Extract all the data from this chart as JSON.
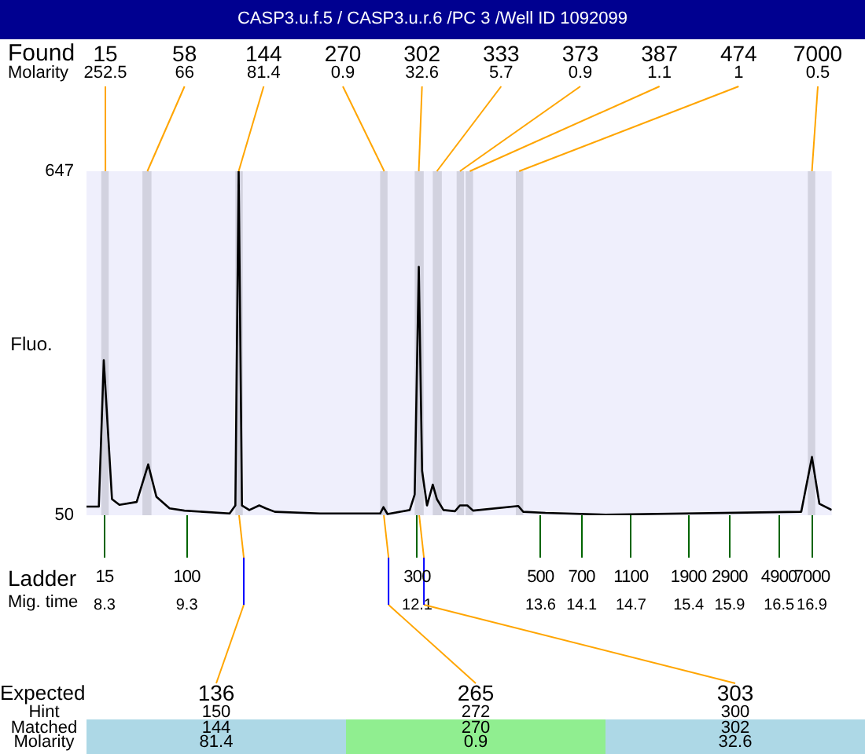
{
  "chart_data": {
    "type": "line",
    "title": "CASP3.u.f.5 / CASP3.u.r.6 /PC 3 /Well ID 1092099",
    "ylabel": "Fluo.",
    "xlim": [
      8.08,
      17.14
    ],
    "xticks": [
      8.3,
      9.3,
      12.1,
      13.6,
      14.1,
      14.7,
      15.4,
      15.9,
      16.5,
      16.9
    ],
    "ylim": [
      50,
      647
    ],
    "yticks": [
      50,
      647
    ],
    "grid": false,
    "legend": false,
    "x": [
      8.08,
      8.23,
      8.29,
      8.39,
      8.48,
      8.69,
      8.83,
      8.93,
      9.09,
      9.27,
      9.82,
      9.89,
      9.93,
      9.97,
      10.06,
      10.18,
      10.26,
      10.37,
      10.92,
      11.65,
      11.69,
      11.74,
      12.01,
      12.07,
      12.12,
      12.16,
      12.22,
      12.29,
      12.34,
      12.42,
      12.56,
      12.62,
      12.71,
      12.78,
      13.33,
      13.39,
      13.66,
      14.39,
      16.77,
      16.9,
      16.99,
      17.14
    ],
    "series": [
      {
        "color": "#000000",
        "values": [
          65,
          65,
          319,
          78,
          68,
          73,
          138,
          82,
          62,
          58,
          53,
          67,
          647,
          67,
          59,
          67,
          62,
          56,
          53,
          53,
          64,
          52,
          59,
          86,
          481,
          127,
          67,
          103,
          78,
          59,
          57,
          67,
          67,
          58,
          66,
          56,
          54,
          51,
          56,
          151,
          70,
          59
        ]
      }
    ],
    "bands": [
      {
        "axis": "x",
        "from": 8.26,
        "to": 8.35,
        "label": "15",
        "color": "#d2d2df"
      },
      {
        "axis": "x",
        "from": 8.76,
        "to": 8.87,
        "label": "58",
        "color": "#d2d2df"
      },
      {
        "axis": "x",
        "from": 9.89,
        "to": 9.98,
        "label": "144",
        "color": "#d2d2df"
      },
      {
        "axis": "x",
        "from": 11.65,
        "to": 11.74,
        "label": "270",
        "color": "#d2d2df"
      },
      {
        "axis": "x",
        "from": 12.07,
        "to": 12.18,
        "label": "302",
        "color": "#d2d2df"
      },
      {
        "axis": "x",
        "from": 12.29,
        "to": 12.4,
        "label": "333",
        "color": "#d2d2df"
      },
      {
        "axis": "x",
        "from": 12.58,
        "to": 12.67,
        "label": "373",
        "color": "#d2d2df"
      },
      {
        "axis": "x",
        "from": 12.69,
        "to": 12.78,
        "label": "387",
        "color": "#d2d2df"
      },
      {
        "axis": "x",
        "from": 13.3,
        "to": 13.39,
        "label": "474",
        "color": "#d2d2df"
      },
      {
        "axis": "x",
        "from": 16.85,
        "to": 16.94,
        "label": "7000",
        "color": "#d2d2df"
      }
    ],
    "annotations": [
      "Found",
      "Molarity",
      "Ladder",
      "Mig. time",
      "Expected",
      "Hint",
      "Matched",
      "Molarity",
      {
        "text": "252.5",
        "x": 8.31,
        "y": 647
      },
      {
        "text": "66",
        "x": 8.82,
        "y": 647
      },
      {
        "text": "81.4",
        "x": 9.93,
        "y": 647
      },
      {
        "text": "0.9",
        "x": 11.7,
        "y": 647
      },
      {
        "text": "32.6",
        "x": 12.12,
        "y": 647
      },
      {
        "text": "5.7",
        "x": 12.34,
        "y": 647
      },
      {
        "text": "0.9",
        "x": 12.62,
        "y": 647
      },
      {
        "text": "1.1",
        "x": 12.74,
        "y": 647
      },
      {
        "text": "1",
        "x": 13.34,
        "y": 647
      },
      {
        "text": "0.5",
        "x": 16.9,
        "y": 647
      },
      "15",
      "100",
      "300",
      "500",
      "700",
      "1100",
      "1900",
      "2900",
      "4900",
      "7000",
      "136",
      "150",
      "144",
      "81.4",
      "265",
      "272",
      "270",
      "0.9",
      "303",
      "300",
      "302",
      "32.6"
    ]
  }
}
